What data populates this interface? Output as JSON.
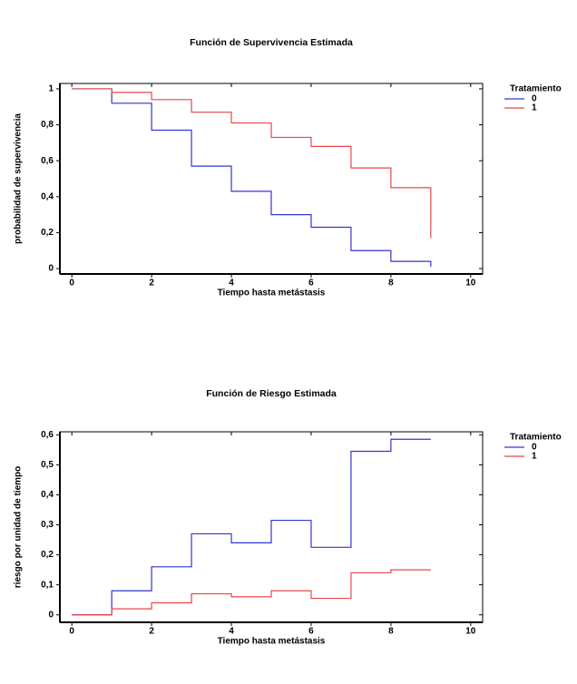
{
  "chart_data": [
    {
      "type": "line",
      "step": true,
      "title": "Función de Supervivencia Estimada",
      "x_label": "Tiempo hasta metástasis",
      "y_label": "probabilidad de supervivencia",
      "legend_title": "Tratamiento",
      "legend": "right",
      "x": [
        0,
        1,
        2,
        3,
        4,
        5,
        6,
        7,
        8,
        9
      ],
      "series": [
        {
          "name": "0",
          "color": "#3434d6",
          "values": [
            1,
            0.92,
            0.77,
            0.57,
            0.43,
            0.3,
            0.23,
            0.1,
            0.04,
            0.01
          ]
        },
        {
          "name": "1",
          "color": "#e8474a",
          "values": [
            1,
            0.98,
            0.94,
            0.87,
            0.81,
            0.73,
            0.68,
            0.56,
            0.45,
            0.17
          ]
        }
      ],
      "xlim": [
        -0.3,
        10.3
      ],
      "xticks": [
        0,
        2,
        4,
        6,
        8,
        10
      ],
      "ylim": [
        -0.03,
        1.03
      ],
      "yticks": [
        0,
        {
          "value": 0.2,
          "label": "0,2"
        },
        {
          "value": 0.4,
          "label": "0,4"
        },
        {
          "value": 0.6,
          "label": "0,6"
        },
        {
          "value": 0.8,
          "label": "0,8"
        },
        1
      ]
    },
    {
      "type": "line",
      "step": true,
      "title": "Función de Riesgo Estimada",
      "x_label": "Tiempo hasta metástasis",
      "y_label": "riesgo por unidad de tiempo",
      "legend_title": "Tratamiento",
      "legend": "right",
      "x": [
        0,
        1,
        2,
        3,
        4,
        5,
        6,
        7,
        8,
        9
      ],
      "series": [
        {
          "name": "0",
          "color": "#3434d6",
          "values": [
            0,
            0.08,
            0.16,
            0.27,
            0.24,
            0.315,
            0.225,
            0.545,
            0.585,
            0.585
          ]
        },
        {
          "name": "1",
          "color": "#e8474a",
          "values": [
            0,
            0.02,
            0.04,
            0.07,
            0.06,
            0.08,
            0.055,
            0.14,
            0.15,
            0.15
          ]
        }
      ],
      "xlim": [
        -0.3,
        10.3
      ],
      "xticks": [
        0,
        2,
        4,
        6,
        8,
        10
      ],
      "ylim": [
        -0.025,
        0.61
      ],
      "yticks": [
        0,
        {
          "value": 0.1,
          "label": "0,1"
        },
        {
          "value": 0.2,
          "label": "0,2"
        },
        {
          "value": 0.3,
          "label": "0,3"
        },
        {
          "value": 0.4,
          "label": "0,4"
        },
        {
          "value": 0.5,
          "label": "0,5"
        },
        {
          "value": 0.6,
          "label": "0,6"
        }
      ]
    }
  ]
}
